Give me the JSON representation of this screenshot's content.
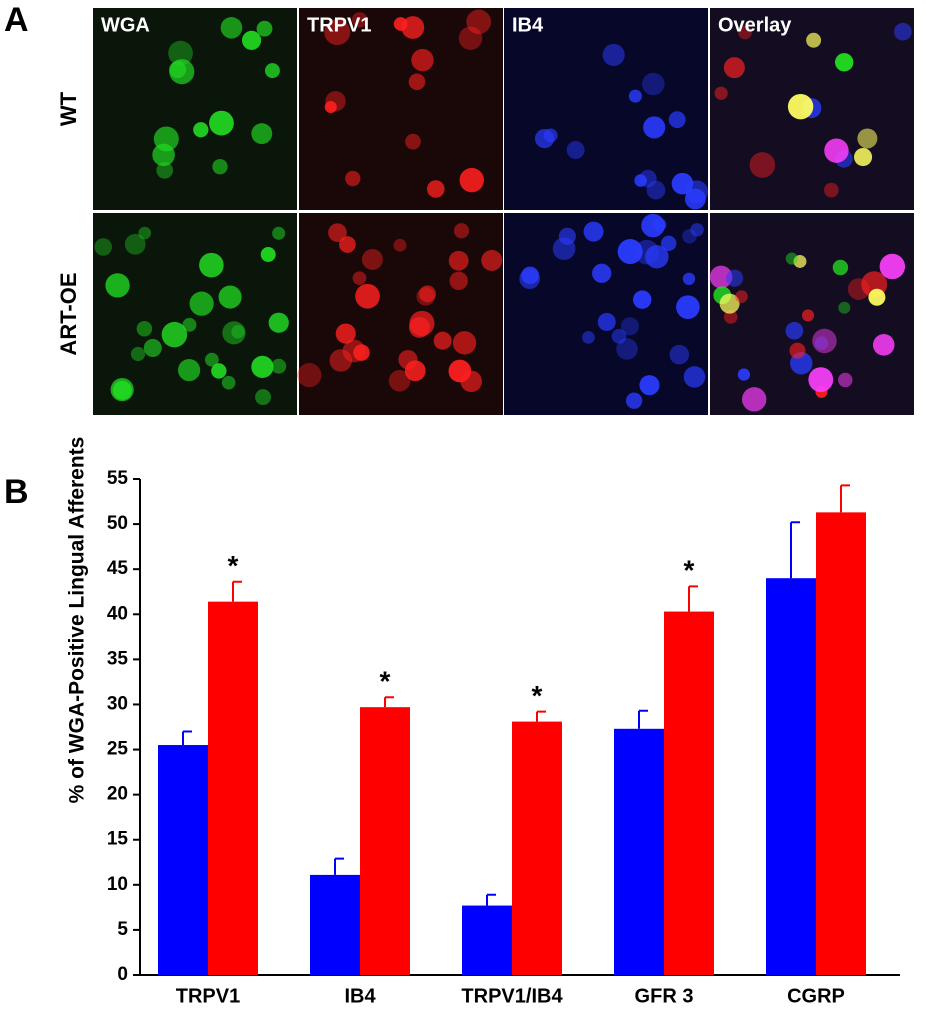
{
  "panel_a": {
    "label": "A",
    "columns": [
      "WGA",
      "TRPV1",
      "IB4",
      "Overlay"
    ],
    "rows": [
      "WT",
      "ART-OE"
    ]
  },
  "chart_data": {
    "type": "bar",
    "label": "B",
    "ylabel": "% of  WGA-Positive Lingual Afferents",
    "categories": [
      "TRPV1",
      "IB4",
      "TRPV1/IB4",
      "GFR 3",
      "CGRP"
    ],
    "series": [
      {
        "color": "#0000ff",
        "values": [
          25.5,
          11.1,
          7.7,
          27.3,
          44.0
        ],
        "errors": [
          1.5,
          1.8,
          1.2,
          2.0,
          6.2
        ]
      },
      {
        "color": "#ff0000",
        "values": [
          41.4,
          29.7,
          28.1,
          40.3,
          51.3
        ],
        "errors": [
          2.2,
          1.1,
          1.1,
          2.8,
          3.0
        ]
      }
    ],
    "significance": [
      "*",
      "*",
      "*",
      "*",
      null
    ],
    "ylim": [
      0,
      55
    ],
    "yticks": [
      0,
      5,
      10,
      15,
      20,
      25,
      30,
      35,
      40,
      45,
      50,
      55
    ]
  }
}
